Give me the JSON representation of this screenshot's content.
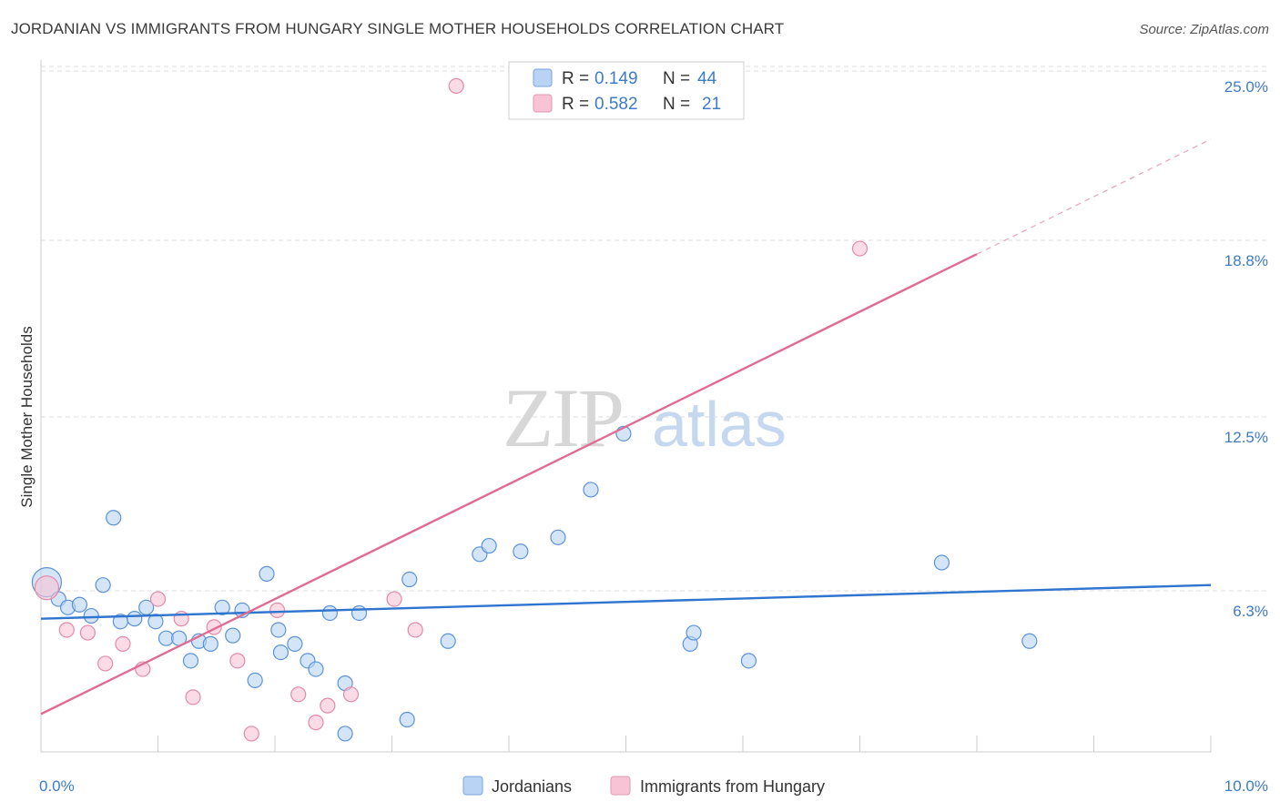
{
  "title": "JORDANIAN VS IMMIGRANTS FROM HUNGARY SINGLE MOTHER HOUSEHOLDS CORRELATION CHART",
  "source": "Source: ZipAtlas.com",
  "watermark": {
    "zip": "ZIP",
    "atlas": "atlas"
  },
  "colors": {
    "blue": "#3a7bd5",
    "blue_fill": "#b8d3f3",
    "pink": "#e06b94",
    "pink_fill": "#f8c3d4",
    "tick_text": "#3d7cc9",
    "grid": "#dddddd"
  },
  "legend": {
    "rows": [
      {
        "r_label": "R =",
        "r_value": "0.149",
        "n_label": "N =",
        "n_value": "44"
      },
      {
        "r_label": "R =",
        "r_value": "0.582",
        "n_label": "N =",
        "n_value": "21"
      }
    ]
  },
  "chart_data": {
    "type": "scatter",
    "title": "JORDANIAN VS IMMIGRANTS FROM HUNGARY SINGLE MOTHER HOUSEHOLDS CORRELATION CHART",
    "xlabel": "",
    "ylabel": "Single Mother Households",
    "xlim": [
      0,
      10
    ],
    "ylim": [
      0.5,
      26
    ],
    "x_tick_labels": [
      "0.0%",
      "10.0%"
    ],
    "y_ticks": [
      6.3,
      12.5,
      18.8,
      25.0
    ],
    "y_tick_labels": [
      "6.3%",
      "12.5%",
      "18.8%",
      "25.0%"
    ],
    "grid": true,
    "legend_position": "top-center",
    "series": [
      {
        "name": "Jordanians",
        "color": "#3a7bd5",
        "trend": {
          "x": [
            0,
            10
          ],
          "y": [
            5.5,
            6.7
          ]
        },
        "points": [
          [
            0.05,
            6.8
          ],
          [
            0.15,
            6.2
          ],
          [
            0.23,
            5.9
          ],
          [
            0.33,
            6.0
          ],
          [
            0.43,
            5.6
          ],
          [
            0.53,
            6.7
          ],
          [
            0.62,
            9.1
          ],
          [
            0.68,
            5.4
          ],
          [
            0.8,
            5.5
          ],
          [
            0.9,
            5.9
          ],
          [
            0.98,
            5.4
          ],
          [
            1.07,
            4.8
          ],
          [
            1.18,
            4.8
          ],
          [
            1.28,
            4.0
          ],
          [
            1.35,
            4.7
          ],
          [
            1.45,
            4.6
          ],
          [
            1.55,
            5.9
          ],
          [
            1.64,
            4.9
          ],
          [
            1.72,
            5.8
          ],
          [
            1.83,
            3.3
          ],
          [
            1.93,
            7.1
          ],
          [
            2.03,
            5.1
          ],
          [
            2.05,
            4.3
          ],
          [
            2.17,
            4.6
          ],
          [
            2.28,
            4.0
          ],
          [
            2.35,
            3.7
          ],
          [
            2.47,
            5.7
          ],
          [
            2.6,
            3.2
          ],
          [
            2.72,
            5.7
          ],
          [
            2.6,
            1.4
          ],
          [
            3.15,
            6.9
          ],
          [
            3.13,
            1.9
          ],
          [
            3.48,
            4.7
          ],
          [
            3.75,
            7.8
          ],
          [
            3.83,
            8.1
          ],
          [
            4.1,
            7.9
          ],
          [
            4.42,
            8.4
          ],
          [
            4.7,
            10.1
          ],
          [
            4.98,
            12.1
          ],
          [
            5.55,
            4.6
          ],
          [
            5.58,
            5.0
          ],
          [
            6.05,
            4.0
          ],
          [
            7.7,
            7.5
          ],
          [
            8.45,
            4.7
          ]
        ]
      },
      {
        "name": "Immigrants from Hungary",
        "color": "#e06b94",
        "trend": {
          "x": [
            0,
            8.0
          ],
          "y": [
            2.1,
            18.5
          ]
        },
        "trend_dashed": {
          "x": [
            8.0,
            10
          ],
          "y": [
            18.5,
            22.6
          ]
        },
        "points": [
          [
            0.05,
            6.6
          ],
          [
            0.22,
            5.1
          ],
          [
            0.4,
            5.0
          ],
          [
            0.55,
            3.9
          ],
          [
            0.7,
            4.6
          ],
          [
            0.87,
            3.7
          ],
          [
            1.0,
            6.2
          ],
          [
            1.2,
            5.5
          ],
          [
            1.3,
            2.7
          ],
          [
            1.48,
            5.2
          ],
          [
            1.68,
            4.0
          ],
          [
            1.8,
            1.4
          ],
          [
            2.02,
            5.8
          ],
          [
            2.2,
            2.8
          ],
          [
            2.35,
            1.8
          ],
          [
            2.45,
            2.4
          ],
          [
            2.65,
            2.8
          ],
          [
            3.02,
            6.2
          ],
          [
            3.2,
            5.1
          ],
          [
            3.55,
            24.5
          ],
          [
            7.0,
            18.7
          ]
        ]
      }
    ]
  }
}
